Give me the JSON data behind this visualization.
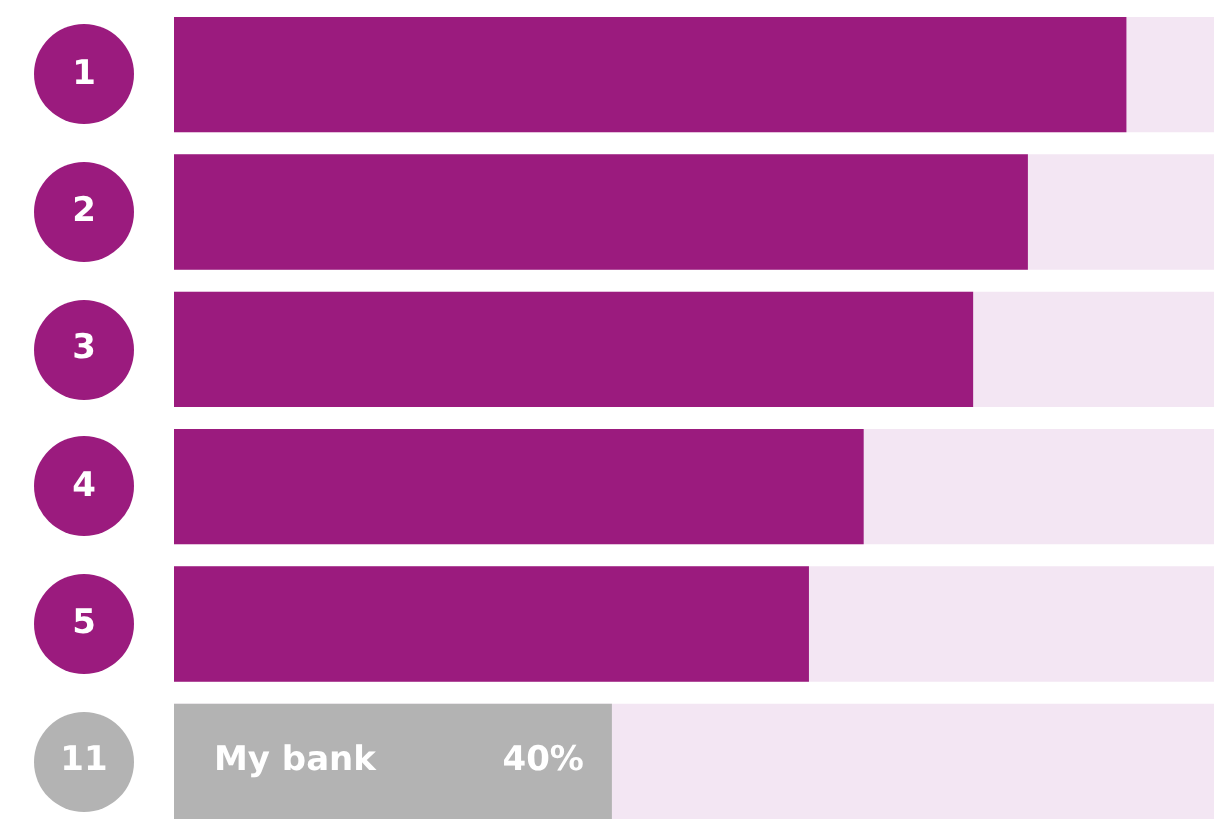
{
  "chart_data": {
    "type": "bar",
    "orientation": "horizontal",
    "categories": [
      "1",
      "2",
      "3",
      "4",
      "5",
      "11"
    ],
    "values": [
      87,
      78,
      73,
      63,
      58,
      40
    ],
    "colors": [
      "#9b1b7e",
      "#9b1b7e",
      "#9b1b7e",
      "#9b1b7e",
      "#9b1b7e",
      "#b3b3b3"
    ],
    "value_labels": [
      null,
      null,
      null,
      null,
      null,
      "40%"
    ],
    "annotations": [
      "My bank"
    ],
    "xlim": [
      0,
      95
    ],
    "tick_labels": "y",
    "grid": false,
    "legend": false
  }
}
